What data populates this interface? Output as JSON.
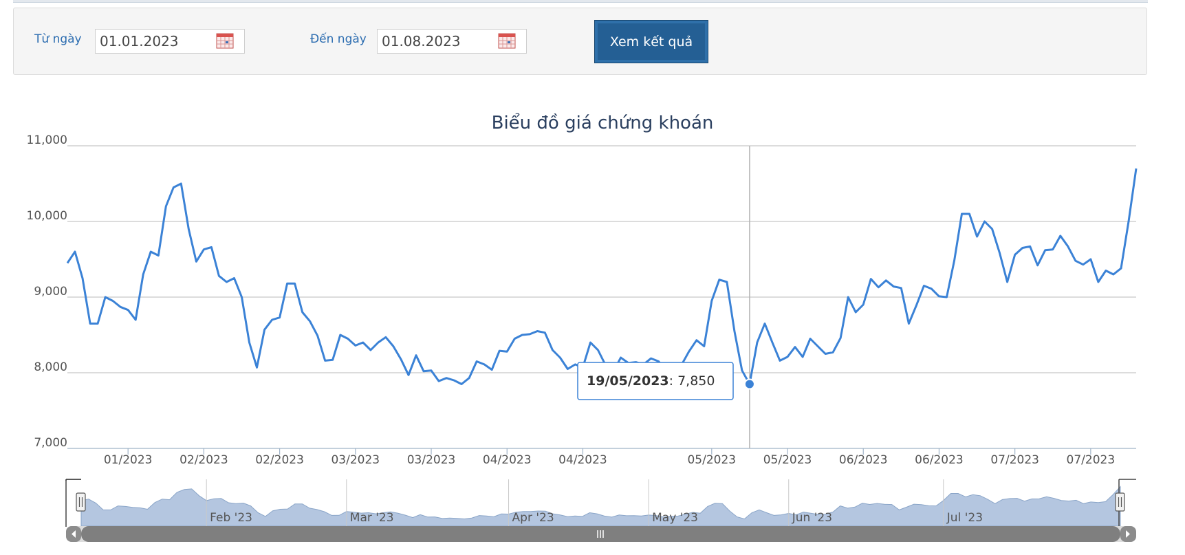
{
  "filter": {
    "from_label": "Từ ngày",
    "from_value": "01.01.2023",
    "to_label": "Đến ngày",
    "to_value": "01.08.2023",
    "submit_label": "Xem kết quả"
  },
  "colors": {
    "line": "#3b82d6",
    "accent_button": "#245f94",
    "navigator_fill": "#b4c6e0"
  },
  "tooltip": {
    "date": "19/05/2023",
    "sep": ": ",
    "value": "7,850"
  },
  "chart_data": {
    "type": "line",
    "title": "Biểu đồ giá chứng khoán",
    "ylim": [
      7000,
      11000
    ],
    "yticks": [
      {
        "value": 7000,
        "label": "7,000"
      },
      {
        "value": 8000,
        "label": "8,000"
      },
      {
        "value": 9000,
        "label": "9,000"
      },
      {
        "value": 10000,
        "label": "10,000"
      },
      {
        "value": 11000,
        "label": "11,000"
      }
    ],
    "xtick_labels": [
      {
        "index": 8,
        "label": "01/2023"
      },
      {
        "index": 18,
        "label": "02/2023"
      },
      {
        "index": 28,
        "label": "02/2023"
      },
      {
        "index": 38,
        "label": "03/2023"
      },
      {
        "index": 48,
        "label": "03/2023"
      },
      {
        "index": 58,
        "label": "04/2023"
      },
      {
        "index": 68,
        "label": "04/2023"
      },
      {
        "index": 85,
        "label": "05/2023"
      },
      {
        "index": 95,
        "label": "05/2023"
      },
      {
        "index": 105,
        "label": "06/2023"
      },
      {
        "index": 115,
        "label": "06/2023"
      },
      {
        "index": 125,
        "label": "07/2023"
      },
      {
        "index": 135,
        "label": "07/2023"
      }
    ],
    "grid": true,
    "highlight_index": 90,
    "series": [
      {
        "values": [
          9450,
          9600,
          9250,
          8650,
          8650,
          9000,
          8950,
          8870,
          8830,
          8700,
          9300,
          9600,
          9550,
          10200,
          10450,
          10500,
          9900,
          9470,
          9630,
          9660,
          9280,
          9200,
          9250,
          9000,
          8400,
          8070,
          8570,
          8700,
          8730,
          9180,
          9180,
          8800,
          8680,
          8490,
          8160,
          8170,
          8500,
          8450,
          8360,
          8400,
          8300,
          8400,
          8470,
          8350,
          8180,
          7970,
          8230,
          8020,
          8030,
          7890,
          7930,
          7900,
          7850,
          7930,
          8150,
          8110,
          8040,
          8290,
          8280,
          8450,
          8500,
          8510,
          8550,
          8530,
          8300,
          8200,
          8050,
          8110,
          8070,
          8400,
          8300,
          8100,
          8010,
          8200,
          8130,
          8140,
          8110,
          8190,
          8150,
          8020,
          8080,
          8100,
          8280,
          8430,
          8350,
          8950,
          9230,
          9200,
          8550,
          8030,
          7850,
          8400,
          8650,
          8400,
          8160,
          8210,
          8340,
          8210,
          8450,
          8350,
          8250,
          8270,
          8460,
          9000,
          8800,
          8900,
          9240,
          9130,
          9220,
          9140,
          9120,
          8650,
          8890,
          9150,
          9110,
          9010,
          9000,
          9480,
          10100,
          10100,
          9800,
          10000,
          9900,
          9580,
          9200,
          9560,
          9650,
          9670,
          9420,
          9620,
          9630,
          9810,
          9670,
          9480,
          9430,
          9500,
          9200,
          9350,
          9300,
          9380,
          10000,
          10700
        ]
      }
    ],
    "navigator": {
      "labels": [
        {
          "index": 17,
          "label": "Feb '23"
        },
        {
          "index": 36,
          "label": "Mar '23"
        },
        {
          "index": 58,
          "label": "Apr '23"
        },
        {
          "index": 77,
          "label": "May '23"
        },
        {
          "index": 96,
          "label": "Jun '23"
        },
        {
          "index": 117,
          "label": "Jul '23"
        }
      ]
    }
  }
}
